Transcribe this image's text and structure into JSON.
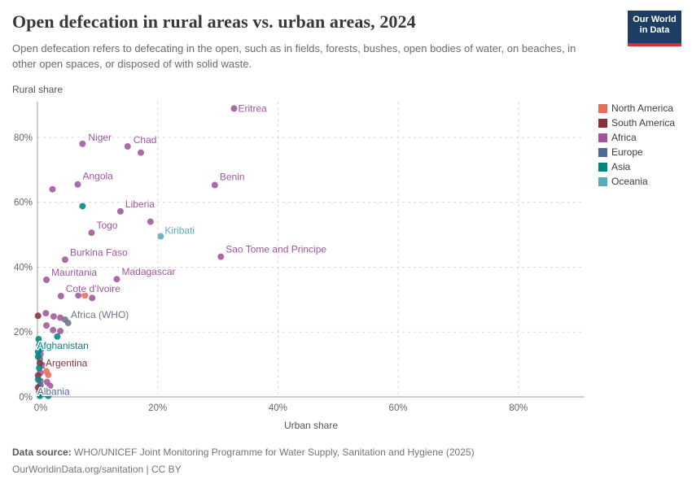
{
  "header": {
    "title": "Open defecation in rural areas vs. urban areas, 2024",
    "subtitle": "Open defecation refers to defecating in the open, such as in fields, forests, bushes, open bodies of water, on beaches, in other open spaces, or disposed of with solid waste.",
    "logo_line1": "Our World",
    "logo_line2": "in Data"
  },
  "legend": {
    "items": [
      {
        "label": "North America",
        "color": "#E56E5A"
      },
      {
        "label": "South America",
        "color": "#883039"
      },
      {
        "label": "Africa",
        "color": "#A2559C"
      },
      {
        "label": "Europe",
        "color": "#4C6A9C"
      },
      {
        "label": "Asia",
        "color": "#00847E"
      },
      {
        "label": "Oceania",
        "color": "#58ACBB"
      }
    ]
  },
  "chart_data": {
    "type": "scatter",
    "title": "Open defecation in rural areas vs. urban areas, 2024",
    "xlabel": "Urban share",
    "ylabel": "Rural share",
    "xlim": [
      0,
      91
    ],
    "ylim": [
      0,
      91
    ],
    "grid": true,
    "legend_position": "right",
    "x_tick_values": [
      0,
      20,
      40,
      60,
      80
    ],
    "x_tick_labels": [
      "0%",
      "20%",
      "40%",
      "60%",
      "80%"
    ],
    "y_tick_values": [
      0,
      20,
      40,
      60,
      80
    ],
    "y_tick_labels": [
      "0%",
      "20%",
      "40%",
      "60%",
      "80%"
    ],
    "series": [
      {
        "name": "Africa",
        "color": "#A2559C",
        "points": [
          {
            "x": 32.7,
            "y": 88.9,
            "label": "Eritrea",
            "dx": 5,
            "dy": 4
          },
          {
            "x": 7.5,
            "y": 78.0,
            "label": "Niger",
            "dx": 7,
            "dy": -4
          },
          {
            "x": 15.0,
            "y": 77.2,
            "label": "Chad",
            "dx": 7,
            "dy": -4
          },
          {
            "x": 17.2,
            "y": 75.3
          },
          {
            "x": 6.7,
            "y": 65.5,
            "label": "Angola",
            "dx": 6,
            "dy": -6
          },
          {
            "x": 2.5,
            "y": 64.0
          },
          {
            "x": 29.5,
            "y": 65.3,
            "label": "Benin",
            "dx": 6,
            "dy": -6
          },
          {
            "x": 13.8,
            "y": 57.2,
            "label": "Liberia",
            "dx": 6,
            "dy": -5
          },
          {
            "x": 18.8,
            "y": 54.0
          },
          {
            "x": 9.0,
            "y": 50.6,
            "label": "Togo",
            "dx": 6,
            "dy": -5
          },
          {
            "x": 4.6,
            "y": 42.3,
            "label": "Burkina Faso",
            "dx": 6,
            "dy": -5
          },
          {
            "x": 30.5,
            "y": 43.2,
            "label": "Sao Tome and Principe",
            "dx": 6,
            "dy": -5
          },
          {
            "x": 1.5,
            "y": 36.1,
            "label": "Mauritania",
            "dx": 6,
            "dy": -5
          },
          {
            "x": 13.2,
            "y": 36.3,
            "label": "Madagascar",
            "dx": 6,
            "dy": -5
          },
          {
            "x": 3.9,
            "y": 31.1,
            "label": "Cote d'Ivoire",
            "dx": 6,
            "dy": -5
          },
          {
            "x": 6.8,
            "y": 31.3
          },
          {
            "x": 9.1,
            "y": 30.5
          },
          {
            "x": 1.4,
            "y": 25.8
          },
          {
            "x": 2.7,
            "y": 24.8
          },
          {
            "x": 3.8,
            "y": 24.4
          },
          {
            "x": 1.5,
            "y": 22.0
          },
          {
            "x": 2.6,
            "y": 20.6
          },
          {
            "x": 3.8,
            "y": 20.3
          },
          {
            "x": 0.5,
            "y": 13.2
          },
          {
            "x": 0.9,
            "y": 9.7
          },
          {
            "x": 0.5,
            "y": 7.4
          },
          {
            "x": 1.6,
            "y": 4.6
          },
          {
            "x": 2.1,
            "y": 3.4
          },
          {
            "x": 0.3,
            "y": 0.8
          },
          {
            "x": 1.0,
            "y": 1.0
          }
        ]
      },
      {
        "name": "Africa (WHO)",
        "color": "#6E7581",
        "points": [
          {
            "x": 4.6,
            "y": 23.8,
            "label": "Africa (WHO)",
            "dx": 7,
            "dy": -2
          },
          {
            "x": 5.1,
            "y": 22.8
          },
          {
            "x": 0.4,
            "y": 11.7
          },
          {
            "x": 0.5,
            "y": 4.9
          }
        ]
      },
      {
        "name": "Europe",
        "color": "#4C6A9C",
        "points": [
          {
            "x": 0.5,
            "y": 3.6,
            "label": "Albania",
            "dx": -4,
            "dy": 12
          },
          {
            "x": 0.3,
            "y": 1.6
          }
        ]
      },
      {
        "name": "North America",
        "color": "#E56E5A",
        "points": [
          {
            "x": 7.9,
            "y": 31.3
          },
          {
            "x": 1.5,
            "y": 7.9
          },
          {
            "x": 1.8,
            "y": 6.8
          }
        ]
      },
      {
        "name": "South America",
        "color": "#883039",
        "points": [
          {
            "x": 0.1,
            "y": 25.0
          },
          {
            "x": 0.4,
            "y": 10.4,
            "label": "Argentina",
            "dx": 7,
            "dy": 4
          },
          {
            "x": 0.1,
            "y": 6.6
          },
          {
            "x": 0.1,
            "y": 2.9
          }
        ]
      },
      {
        "name": "Asia",
        "color": "#00847E",
        "points": [
          {
            "x": 7.5,
            "y": 58.8
          },
          {
            "x": 0.2,
            "y": 17.8,
            "label": "Afghanistan",
            "dx": -2,
            "dy": 12
          },
          {
            "x": 3.3,
            "y": 18.6
          },
          {
            "x": 0.3,
            "y": 15.9
          },
          {
            "x": 0.7,
            "y": 14.9
          },
          {
            "x": 0.1,
            "y": 13.9
          },
          {
            "x": 0.1,
            "y": 12.4
          },
          {
            "x": 0.3,
            "y": 8.9
          },
          {
            "x": 0.1,
            "y": 5.4
          },
          {
            "x": 0.4,
            "y": 0.3
          },
          {
            "x": 1.8,
            "y": 0.3
          }
        ]
      },
      {
        "name": "Oceania",
        "color": "#58ACBB",
        "points": [
          {
            "x": 20.5,
            "y": 49.5,
            "label": "Kiribati",
            "dx": 5,
            "dy": -3
          }
        ]
      }
    ]
  },
  "footer": {
    "source_label": "Data source: ",
    "source_text": "WHO/UNICEF Joint Monitoring Programme for Water Supply, Sanitation and Hygiene (2025)",
    "note": "OurWorldinData.org/sanitation | CC BY"
  }
}
